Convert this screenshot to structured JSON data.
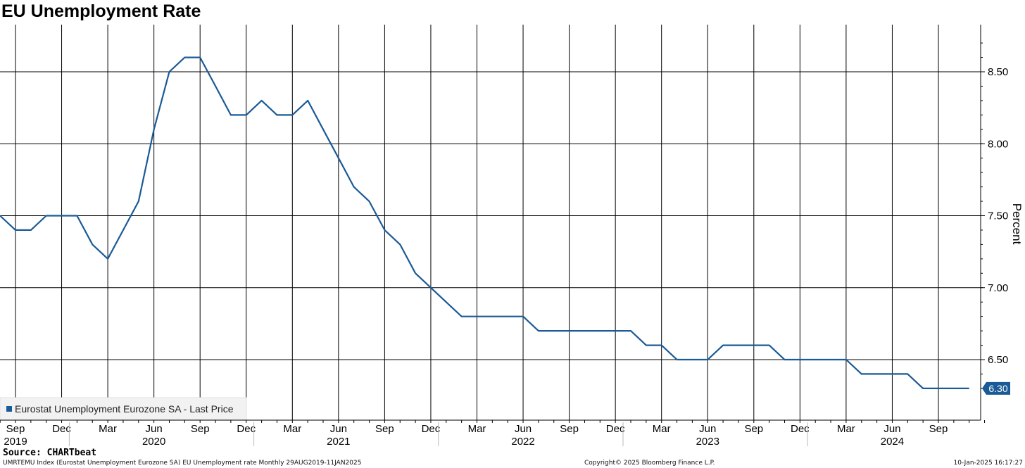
{
  "title": "EU Unemployment Rate",
  "source": "Source: CHARTbeat",
  "footer": {
    "left": "UMRTEMU Index (Eurostat Unemployment Eurozone SA) EU Unemployment rate  Monthly 29AUG2019-11JAN2025",
    "center": "Copyright© 2025 Bloomberg Finance L.P.",
    "right": "10-Jan-2025 16:17:27"
  },
  "colors": {
    "series": "#1a5a96",
    "grid": "#000000",
    "last_badge": "#1a5a96"
  },
  "chart_data": {
    "type": "line",
    "title": "EU Unemployment Rate",
    "ylabel": "Percent",
    "ylim": [
      6.2,
      8.8
    ],
    "y_ticks": [
      "8.50",
      "8.00",
      "7.50",
      "7.00",
      "6.50"
    ],
    "y_tick_values": [
      8.5,
      8.0,
      7.5,
      7.0,
      6.5
    ],
    "y_axis_side": "right",
    "grid": true,
    "legend": {
      "position": "bottom-left",
      "entries": [
        "Eurostat Unemployment Eurozone SA - Last Price"
      ]
    },
    "x_ticks": [
      {
        "month": "Sep",
        "year": "2019",
        "date": "2019-09"
      },
      {
        "month": "Dec",
        "year": "",
        "date": "2019-12"
      },
      {
        "month": "Mar",
        "year": "",
        "date": "2020-03"
      },
      {
        "month": "Jun",
        "year": "2020",
        "date": "2020-06"
      },
      {
        "month": "Sep",
        "year": "",
        "date": "2020-09"
      },
      {
        "month": "Dec",
        "year": "",
        "date": "2020-12"
      },
      {
        "month": "Mar",
        "year": "",
        "date": "2021-03"
      },
      {
        "month": "Jun",
        "year": "2021",
        "date": "2021-06"
      },
      {
        "month": "Sep",
        "year": "",
        "date": "2021-09"
      },
      {
        "month": "Dec",
        "year": "",
        "date": "2021-12"
      },
      {
        "month": "Mar",
        "year": "",
        "date": "2022-03"
      },
      {
        "month": "Jun",
        "year": "2022",
        "date": "2022-06"
      },
      {
        "month": "Sep",
        "year": "",
        "date": "2022-09"
      },
      {
        "month": "Dec",
        "year": "",
        "date": "2022-12"
      },
      {
        "month": "Mar",
        "year": "",
        "date": "2023-03"
      },
      {
        "month": "Jun",
        "year": "2023",
        "date": "2023-06"
      },
      {
        "month": "Sep",
        "year": "",
        "date": "2023-09"
      },
      {
        "month": "Dec",
        "year": "",
        "date": "2023-12"
      },
      {
        "month": "Mar",
        "year": "",
        "date": "2024-03"
      },
      {
        "month": "Jun",
        "year": "2024",
        "date": "2024-06"
      },
      {
        "month": "Sep",
        "year": "",
        "date": "2024-09"
      }
    ],
    "last_value": "6.30",
    "series": [
      {
        "name": "Eurostat Unemployment Eurozone SA - Last Price",
        "x": [
          "2019-08",
          "2019-09",
          "2019-10",
          "2019-11",
          "2019-12",
          "2020-01",
          "2020-02",
          "2020-03",
          "2020-04",
          "2020-05",
          "2020-06",
          "2020-07",
          "2020-08",
          "2020-09",
          "2020-10",
          "2020-11",
          "2020-12",
          "2021-01",
          "2021-02",
          "2021-03",
          "2021-04",
          "2021-05",
          "2021-06",
          "2021-07",
          "2021-08",
          "2021-09",
          "2021-10",
          "2021-11",
          "2021-12",
          "2022-01",
          "2022-02",
          "2022-03",
          "2022-04",
          "2022-05",
          "2022-06",
          "2022-07",
          "2022-08",
          "2022-09",
          "2022-10",
          "2022-11",
          "2022-12",
          "2023-01",
          "2023-02",
          "2023-03",
          "2023-04",
          "2023-05",
          "2023-06",
          "2023-07",
          "2023-08",
          "2023-09",
          "2023-10",
          "2023-11",
          "2023-12",
          "2024-01",
          "2024-02",
          "2024-03",
          "2024-04",
          "2024-05",
          "2024-06",
          "2024-07",
          "2024-08",
          "2024-09",
          "2024-10",
          "2024-11"
        ],
        "values": [
          7.5,
          7.4,
          7.4,
          7.5,
          7.5,
          7.5,
          7.3,
          7.2,
          7.4,
          7.6,
          8.1,
          8.5,
          8.6,
          8.6,
          8.4,
          8.2,
          8.2,
          8.3,
          8.2,
          8.2,
          8.3,
          8.1,
          7.9,
          7.7,
          7.6,
          7.4,
          7.3,
          7.1,
          7.0,
          6.9,
          6.8,
          6.8,
          6.8,
          6.8,
          6.8,
          6.7,
          6.7,
          6.7,
          6.7,
          6.7,
          6.7,
          6.7,
          6.6,
          6.6,
          6.5,
          6.5,
          6.5,
          6.6,
          6.6,
          6.6,
          6.6,
          6.5,
          6.5,
          6.5,
          6.5,
          6.5,
          6.4,
          6.4,
          6.4,
          6.4,
          6.3,
          6.3,
          6.3,
          6.3
        ]
      }
    ]
  }
}
